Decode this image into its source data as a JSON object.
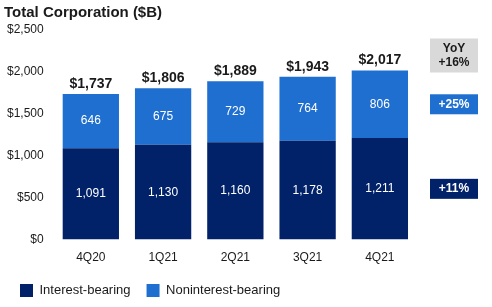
{
  "chart_data": {
    "type": "bar",
    "title": "Total Corporation ($B)",
    "categories": [
      "4Q20",
      "1Q21",
      "2Q21",
      "3Q21",
      "4Q21"
    ],
    "series": [
      {
        "name": "Interest-bearing",
        "color": "#012169",
        "values": [
          1091,
          1130,
          1160,
          1178,
          1211
        ],
        "value_labels": [
          "1,091",
          "1,130",
          "1,160",
          "1,178",
          "1,211"
        ]
      },
      {
        "name": "Noninterest-bearing",
        "color": "#1f6fd1",
        "values": [
          646,
          675,
          729,
          764,
          806
        ],
        "value_labels": [
          "646",
          "675",
          "729",
          "764",
          "806"
        ]
      }
    ],
    "totals": {
      "values": [
        1737,
        1806,
        1889,
        1943,
        2017
      ],
      "value_labels": [
        "$1,737",
        "$1,806",
        "$1,889",
        "$1,943",
        "$2,017"
      ]
    },
    "annotations": [
      {
        "lines": [
          "YoY",
          "+16%"
        ],
        "target": "total",
        "color": "#d9d9d9"
      },
      {
        "lines": [
          "+25%"
        ],
        "target": "Noninterest-bearing",
        "color": "#1f6fd1"
      },
      {
        "lines": [
          "+11%"
        ],
        "target": "Interest-bearing",
        "color": "#012169"
      }
    ],
    "ylim": [
      0,
      2500
    ],
    "yticks": [
      {
        "value": 0,
        "label": "$0"
      },
      {
        "value": 500,
        "label": "$500"
      },
      {
        "value": 1000,
        "label": "$1,000"
      },
      {
        "value": 1500,
        "label": "$1,500"
      },
      {
        "value": 2000,
        "label": "$2,000"
      },
      {
        "value": 2500,
        "label": "$2,500"
      }
    ],
    "stacked": true,
    "data_labels": true,
    "grid": false,
    "legend": "bottom"
  }
}
